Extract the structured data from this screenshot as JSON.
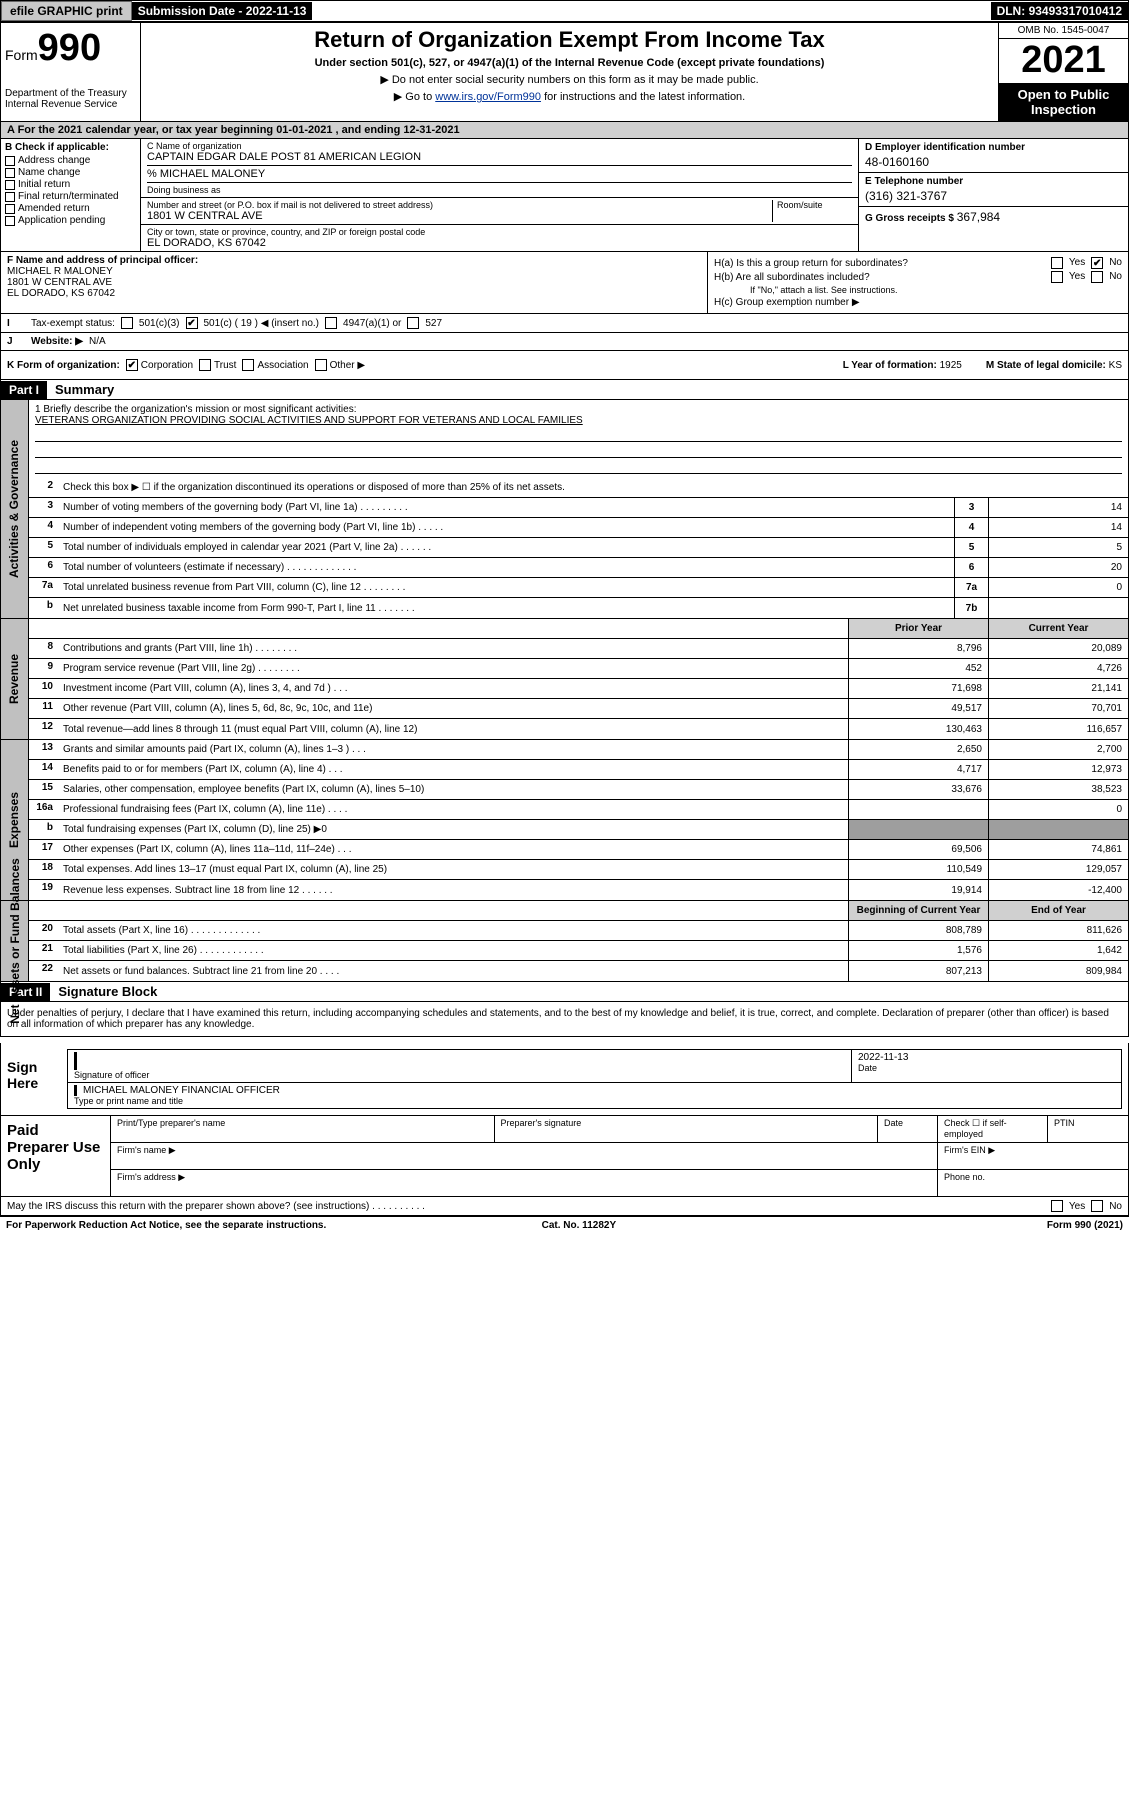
{
  "topbar": {
    "efile": "efile GRAPHIC print",
    "subdate_lbl": "Submission Date - ",
    "subdate": "2022-11-13",
    "dln_lbl": "DLN: ",
    "dln": "93493317010412"
  },
  "header": {
    "form_lbl": "Form",
    "form_num": "990",
    "title": "Return of Organization Exempt From Income Tax",
    "subtitle": "Under section 501(c), 527, or 4947(a)(1) of the Internal Revenue Code (except private foundations)",
    "note1": "▶ Do not enter social security numbers on this form as it may be made public.",
    "note2_pre": "▶ Go to ",
    "note2_link": "www.irs.gov/Form990",
    "note2_post": " for instructions and the latest information.",
    "dept": "Department of the Treasury\nInternal Revenue Service",
    "omb": "OMB No. 1545-0047",
    "year": "2021",
    "openpub": "Open to Public Inspection"
  },
  "period": "A For the 2021 calendar year, or tax year beginning 01-01-2021  , and ending 12-31-2021",
  "colB": {
    "lbl": "B Check if applicable:",
    "opts": [
      "Address change",
      "Name change",
      "Initial return",
      "Final return/terminated",
      "Amended return",
      "Application pending"
    ]
  },
  "colC": {
    "name_lbl": "C Name of organization",
    "name": "CAPTAIN EDGAR DALE POST 81 AMERICAN LEGION",
    "care_lbl": "% MICHAEL MALONEY",
    "dba_lbl": "Doing business as",
    "addr_lbl": "Number and street (or P.O. box if mail is not delivered to street address)",
    "room_lbl": "Room/suite",
    "addr": "1801 W CENTRAL AVE",
    "city_lbl": "City or town, state or province, country, and ZIP or foreign postal code",
    "city": "EL DORADO, KS  67042"
  },
  "colDE": {
    "ein_lbl": "D Employer identification number",
    "ein": "48-0160160",
    "tel_lbl": "E Telephone number",
    "tel": "(316) 321-3767",
    "gross_lbl": "G Gross receipts $ ",
    "gross": "367,984"
  },
  "colF": {
    "lbl": "F  Name and address of principal officer:",
    "name": "MICHAEL R MALONEY",
    "addr": "1801 W CENTRAL AVE",
    "city": "EL DORADO, KS  67042"
  },
  "colH": {
    "ha_lbl": "H(a)  Is this a group return for subordinates?",
    "hb_lbl": "H(b)  Are all subordinates included?",
    "hb_note": "If \"No,\" attach a list. See instructions.",
    "hc_lbl": "H(c)  Group exemption number ▶",
    "ha_no_checked": true
  },
  "lineI": {
    "lbl": "Tax-exempt status:",
    "o1": "501(c)(3)",
    "o2_pre": "501(c) ( ",
    "o2_val": "19",
    "o2_post": " ) ◀ (insert no.)",
    "o3": "4947(a)(1) or",
    "o4": "527",
    "o2_checked": true
  },
  "lineJ": {
    "lbl": "Website: ▶",
    "val": "N/A"
  },
  "lineK": {
    "lbl": "K Form of organization:",
    "opts": [
      "Corporation",
      "Trust",
      "Association",
      "Other ▶"
    ],
    "checked": 0,
    "yof_lbl": "L Year of formation: ",
    "yof": "1925",
    "dom_lbl": "M State of legal domicile: ",
    "dom": "KS"
  },
  "part1": {
    "bar": "Part I",
    "title": "Summary",
    "q1_lbl": "1  Briefly describe the organization's mission or most significant activities:",
    "q1_val": "VETERANS ORGANIZATION PROVIDING SOCIAL ACTIVITIES AND SUPPORT FOR VETERANS AND LOCAL FAMILIES",
    "q2": "Check this box ▶ ☐  if the organization discontinued its operations or disposed of more than 25% of its net assets."
  },
  "gov_rows": [
    {
      "n": "3",
      "d": "Number of voting members of the governing body (Part VI, line 1a)   .   .   .   .   .   .   .   .   .",
      "b": "3",
      "v": "14"
    },
    {
      "n": "4",
      "d": "Number of independent voting members of the governing body (Part VI, line 1b)   .   .   .   .   .",
      "b": "4",
      "v": "14"
    },
    {
      "n": "5",
      "d": "Total number of individuals employed in calendar year 2021 (Part V, line 2a)   .   .   .   .   .   .",
      "b": "5",
      "v": "5"
    },
    {
      "n": "6",
      "d": "Total number of volunteers (estimate if necessary)   .   .   .   .   .   .   .   .   .   .   .   .   .",
      "b": "6",
      "v": "20"
    },
    {
      "n": "7a",
      "d": "Total unrelated business revenue from Part VIII, column (C), line 12   .   .   .   .   .   .   .   .",
      "b": "7a",
      "v": "0"
    },
    {
      "n": "b",
      "d": "Net unrelated business taxable income from Form 990-T, Part I, line 11   .   .   .   .   .   .   .",
      "b": "7b",
      "v": ""
    }
  ],
  "colhdr": {
    "py": "Prior Year",
    "cy": "Current Year"
  },
  "rev_rows": [
    {
      "n": "8",
      "d": "Contributions and grants (Part VIII, line 1h)   .   .   .   .   .   .   .   .",
      "py": "8,796",
      "cy": "20,089"
    },
    {
      "n": "9",
      "d": "Program service revenue (Part VIII, line 2g)   .   .   .   .   .   .   .   .",
      "py": "452",
      "cy": "4,726"
    },
    {
      "n": "10",
      "d": "Investment income (Part VIII, column (A), lines 3, 4, and 7d )   .   .   .",
      "py": "71,698",
      "cy": "21,141"
    },
    {
      "n": "11",
      "d": "Other revenue (Part VIII, column (A), lines 5, 6d, 8c, 9c, 10c, and 11e)",
      "py": "49,517",
      "cy": "70,701"
    },
    {
      "n": "12",
      "d": "Total revenue—add lines 8 through 11 (must equal Part VIII, column (A), line 12)",
      "py": "130,463",
      "cy": "116,657"
    }
  ],
  "exp_rows": [
    {
      "n": "13",
      "d": "Grants and similar amounts paid (Part IX, column (A), lines 1–3 )   .   .   .",
      "py": "2,650",
      "cy": "2,700"
    },
    {
      "n": "14",
      "d": "Benefits paid to or for members (Part IX, column (A), line 4)   .   .   .",
      "py": "4,717",
      "cy": "12,973"
    },
    {
      "n": "15",
      "d": "Salaries, other compensation, employee benefits (Part IX, column (A), lines 5–10)",
      "py": "33,676",
      "cy": "38,523"
    },
    {
      "n": "16a",
      "d": "Professional fundraising fees (Part IX, column (A), line 11e)   .   .   .   .",
      "py": "",
      "cy": "0"
    },
    {
      "n": "b",
      "d": "Total fundraising expenses (Part IX, column (D), line 25) ▶0",
      "py": "grey",
      "cy": "grey"
    },
    {
      "n": "17",
      "d": "Other expenses (Part IX, column (A), lines 11a–11d, 11f–24e)   .   .   .",
      "py": "69,506",
      "cy": "74,861"
    },
    {
      "n": "18",
      "d": "Total expenses. Add lines 13–17 (must equal Part IX, column (A), line 25)",
      "py": "110,549",
      "cy": "129,057"
    },
    {
      "n": "19",
      "d": "Revenue less expenses. Subtract line 18 from line 12   .   .   .   .   .   .",
      "py": "19,914",
      "cy": "-12,400"
    }
  ],
  "colhdr2": {
    "py": "Beginning of Current Year",
    "cy": "End of Year"
  },
  "net_rows": [
    {
      "n": "20",
      "d": "Total assets (Part X, line 16)   .   .   .   .   .   .   .   .   .   .   .   .   .",
      "py": "808,789",
      "cy": "811,626"
    },
    {
      "n": "21",
      "d": "Total liabilities (Part X, line 26)   .   .   .   .   .   .   .   .   .   .   .   .",
      "py": "1,576",
      "cy": "1,642"
    },
    {
      "n": "22",
      "d": "Net assets or fund balances. Subtract line 21 from line 20   .   .   .   .",
      "py": "807,213",
      "cy": "809,984"
    }
  ],
  "part2": {
    "bar": "Part II",
    "title": "Signature Block"
  },
  "sigdecl": "Under penalties of perjury, I declare that I have examined this return, including accompanying schedules and statements, and to the best of my knowledge and belief, it is true, correct, and complete. Declaration of preparer (other than officer) is based on all information of which preparer has any knowledge.",
  "sign": {
    "lbl": "Sign Here",
    "sig_lbl": "Signature of officer",
    "date_lbl": "Date",
    "date": "2022-11-13",
    "name": "MICHAEL MALONEY  FINANCIAL OFFICER",
    "name_lbl": "Type or print name and title"
  },
  "paid": {
    "lbl": "Paid Preparer Use Only",
    "c1": "Print/Type preparer's name",
    "c2": "Preparer's signature",
    "c3": "Date",
    "c4": "Check ☐ if self-employed",
    "c5": "PTIN",
    "f1": "Firm's name  ▶",
    "f2": "Firm's EIN ▶",
    "f3": "Firm's address ▶",
    "f4": "Phone no."
  },
  "discuss": "May the IRS discuss this return with the preparer shown above? (see instructions)   .   .   .   .   .   .   .   .   .   .",
  "footer": {
    "l": "For Paperwork Reduction Act Notice, see the separate instructions.",
    "m": "Cat. No. 11282Y",
    "r": "Form 990 (2021)"
  },
  "vlabels": {
    "gov": "Activities & Governance",
    "rev": "Revenue",
    "exp": "Expenses",
    "net": "Net Assets or Fund Balances"
  }
}
